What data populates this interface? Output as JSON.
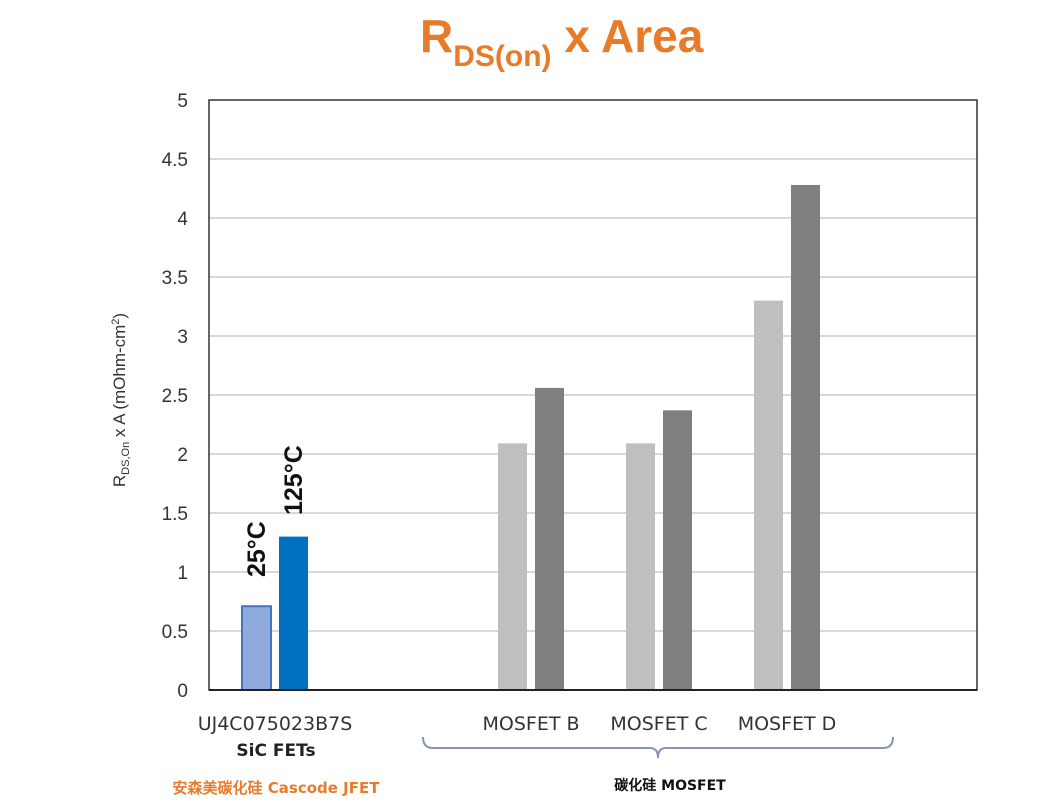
{
  "chart_data": {
    "type": "bar",
    "title": {
      "main": "R",
      "sub": "DS(on)",
      "rest": " x Area"
    },
    "title_color": "#E87B2A",
    "ylabel": {
      "main": "R",
      "sub": "DS,On",
      "rest": " x A (mOhm-cm",
      "sup": "2",
      "end": ")"
    },
    "ylim": [
      0,
      5
    ],
    "yticks": [
      "0",
      "0.5",
      "1",
      "1.5",
      "2",
      "2.5",
      "3",
      "3.5",
      "4",
      "4.5",
      "5"
    ],
    "grid": true,
    "categories": [
      "UJ4C075023B7S",
      "",
      "MOSFET B",
      "MOSFET C",
      "MOSFET D",
      ""
    ],
    "series": [
      {
        "values": [
          0.71,
          null,
          2.09,
          2.09,
          3.3,
          null
        ],
        "colors": [
          "#8FAADC",
          null,
          "#BFBFBF",
          "#BFBFBF",
          "#BFBFBF",
          null
        ]
      },
      {
        "values": [
          1.3,
          null,
          2.56,
          2.37,
          4.28,
          null
        ],
        "colors": [
          "#0070C0",
          null,
          "#7F7F7F",
          "#7F7F7F",
          "#7F7F7F",
          null
        ]
      }
    ],
    "bar_labels": [
      "25°C",
      "125°C"
    ],
    "group_labels": {
      "sic_fets": "SiC FETs",
      "cascode": "安森美碳化硅 Cascode JFET",
      "mosfet": "碳化硅 MOSFET"
    },
    "cascode_color": "#E87B2A"
  }
}
